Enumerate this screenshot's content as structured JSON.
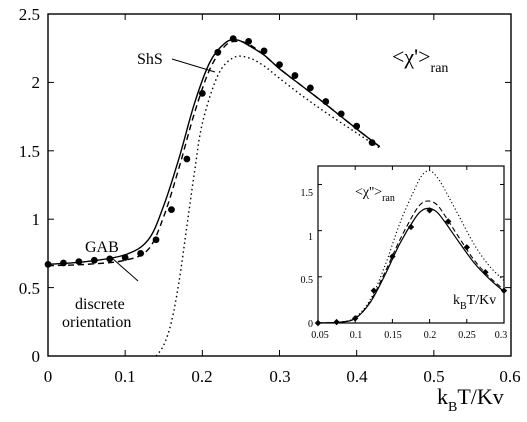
{
  "chart_data": [
    {
      "type": "line",
      "xlim": [
        0,
        0.6
      ],
      "ylim": [
        0,
        2.5
      ],
      "x_ticks": [
        "0",
        "0.1",
        "0.2",
        "0.3",
        "0.4",
        "0.5",
        "0.6"
      ],
      "y_ticks": [
        "0",
        "0.5",
        "1",
        "1.5",
        "2",
        "2.5"
      ],
      "xlabel": {
        "main": "k",
        "sub": "B",
        "rest": "T/Kv"
      },
      "annotation": {
        "main": "<χ'>",
        "sub": "ran"
      },
      "labels": {
        "shs": "ShS",
        "gab": "GAB",
        "discrete_line1": "discrete",
        "discrete_line2": "orientation"
      },
      "series": [
        {
          "name": "ShS",
          "style": "solid",
          "x": [
            0,
            0.05,
            0.1,
            0.13,
            0.15,
            0.17,
            0.19,
            0.21,
            0.23,
            0.245,
            0.26,
            0.28,
            0.3,
            0.33,
            0.36,
            0.4,
            0.43
          ],
          "y": [
            0.67,
            0.69,
            0.74,
            0.85,
            1.1,
            1.45,
            1.85,
            2.15,
            2.29,
            2.31,
            2.27,
            2.2,
            2.1,
            1.97,
            1.84,
            1.66,
            1.53
          ]
        },
        {
          "name": "GAB",
          "style": "dashed",
          "x": [
            0,
            0.05,
            0.1,
            0.13,
            0.15,
            0.17,
            0.19,
            0.21,
            0.23,
            0.245,
            0.26,
            0.28,
            0.3,
            0.33,
            0.36,
            0.4,
            0.43
          ],
          "y": [
            0.66,
            0.67,
            0.7,
            0.78,
            1.02,
            1.38,
            1.78,
            2.1,
            2.27,
            2.3,
            2.28,
            2.2,
            2.1,
            1.97,
            1.84,
            1.66,
            1.53
          ]
        },
        {
          "name": "discrete orientation",
          "style": "dotted",
          "x": [
            0.14,
            0.15,
            0.16,
            0.17,
            0.18,
            0.19,
            0.2,
            0.22,
            0.24,
            0.26,
            0.28,
            0.3,
            0.33,
            0.36,
            0.4,
            0.43
          ],
          "y": [
            0.0,
            0.08,
            0.25,
            0.55,
            0.95,
            1.35,
            1.7,
            2.05,
            2.18,
            2.18,
            2.12,
            2.03,
            1.9,
            1.78,
            1.63,
            1.52
          ]
        },
        {
          "name": "data",
          "style": "markers",
          "x": [
            0,
            0.02,
            0.04,
            0.06,
            0.08,
            0.1,
            0.12,
            0.14,
            0.16,
            0.18,
            0.2,
            0.22,
            0.24,
            0.26,
            0.28,
            0.3,
            0.32,
            0.34,
            0.36,
            0.38,
            0.4,
            0.42
          ],
          "y": [
            0.67,
            0.68,
            0.69,
            0.7,
            0.71,
            0.72,
            0.75,
            0.85,
            1.07,
            1.44,
            1.92,
            2.22,
            2.32,
            2.3,
            2.23,
            2.13,
            2.05,
            1.96,
            1.86,
            1.77,
            1.68,
            1.56
          ]
        }
      ]
    },
    {
      "type": "line",
      "xlim": [
        0.05,
        0.3
      ],
      "ylim": [
        0,
        1.7
      ],
      "x_ticks": [
        "0.05",
        "0.1",
        "0.15",
        "0.2",
        "0.25",
        "0.3"
      ],
      "y_ticks": [
        "0",
        "0.5",
        "1",
        "1.5"
      ],
      "xlabel": {
        "main": "k",
        "sub": "B",
        "rest": "T/Kv"
      },
      "annotation": {
        "main": "<χ''>",
        "sub": "ran"
      },
      "series": [
        {
          "name": "ShS",
          "style": "solid",
          "x": [
            0.05,
            0.08,
            0.1,
            0.12,
            0.14,
            0.16,
            0.18,
            0.19,
            0.2,
            0.21,
            0.22,
            0.24,
            0.26,
            0.28,
            0.3
          ],
          "y": [
            0.0,
            0.01,
            0.05,
            0.22,
            0.52,
            0.86,
            1.13,
            1.22,
            1.24,
            1.2,
            1.1,
            0.87,
            0.65,
            0.48,
            0.34
          ]
        },
        {
          "name": "GAB",
          "style": "dashed",
          "x": [
            0.05,
            0.08,
            0.1,
            0.12,
            0.14,
            0.16,
            0.18,
            0.19,
            0.2,
            0.21,
            0.22,
            0.24,
            0.26,
            0.28,
            0.3
          ],
          "y": [
            0.0,
            0.01,
            0.05,
            0.23,
            0.55,
            0.9,
            1.2,
            1.3,
            1.32,
            1.28,
            1.17,
            0.92,
            0.68,
            0.5,
            0.36
          ]
        },
        {
          "name": "discrete orientation",
          "style": "dotted",
          "x": [
            0.05,
            0.08,
            0.1,
            0.12,
            0.14,
            0.16,
            0.18,
            0.19,
            0.2,
            0.21,
            0.22,
            0.24,
            0.26,
            0.28,
            0.3
          ],
          "y": [
            0.0,
            0.01,
            0.06,
            0.25,
            0.62,
            1.08,
            1.45,
            1.6,
            1.65,
            1.58,
            1.45,
            1.15,
            0.85,
            0.62,
            0.46
          ]
        },
        {
          "name": "data",
          "style": "markers",
          "x": [
            0.05,
            0.075,
            0.1,
            0.125,
            0.15,
            0.175,
            0.2,
            0.225,
            0.25,
            0.275,
            0.3
          ],
          "y": [
            0.0,
            0.01,
            0.05,
            0.35,
            0.72,
            1.04,
            1.22,
            1.1,
            0.82,
            0.55,
            0.35
          ]
        }
      ]
    }
  ]
}
